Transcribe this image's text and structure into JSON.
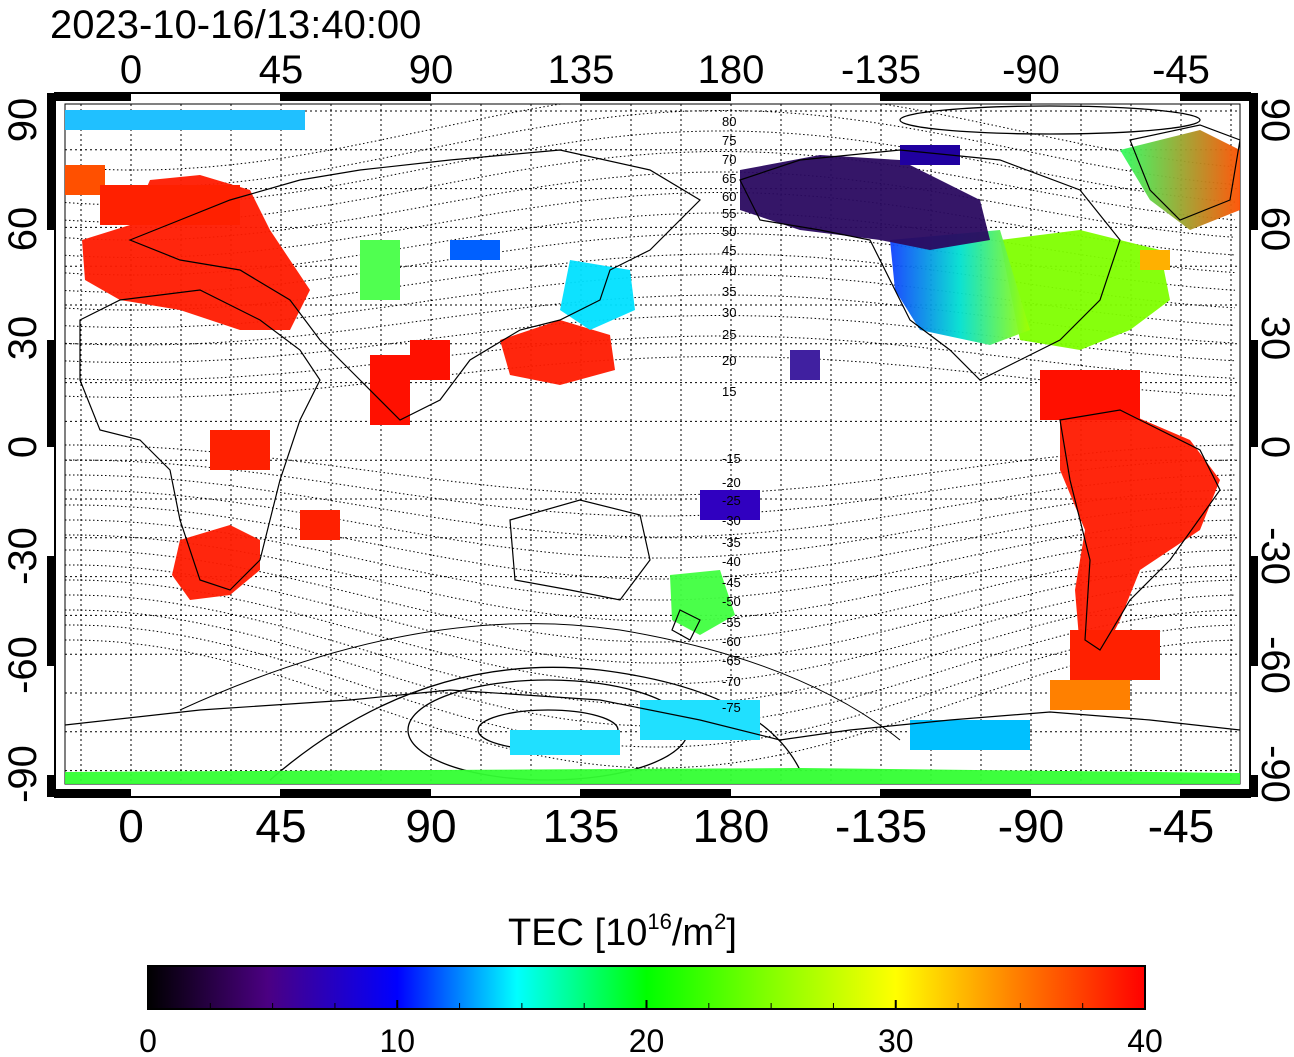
{
  "title": "2023-10-16/13:40:00",
  "colorbar": {
    "label_main": "TEC  [10",
    "label_exp": "16",
    "label_mid": "/m",
    "label_exp2": "2",
    "label_end": "]",
    "ticks": [
      "0",
      "10",
      "20",
      "30",
      "40"
    ],
    "range": [
      0,
      40
    ],
    "colors": [
      "#000000",
      "#4b0082",
      "#0000ff",
      "#00ffff",
      "#00ff00",
      "#ffff00",
      "#ff8000",
      "#ff0000"
    ]
  },
  "map": {
    "lon_ticks": [
      "0",
      "45",
      "90",
      "135",
      "180",
      "-135",
      "-90",
      "-45"
    ],
    "lat_ticks": [
      "90",
      "60",
      "30",
      "0",
      "-30",
      "-60",
      "-90"
    ],
    "right_lat_ticks": [
      "90",
      "60",
      "30",
      "0",
      "-30",
      "-60",
      "-90"
    ],
    "contour_labels": [
      "80",
      "75",
      "70",
      "65",
      "60",
      "55",
      "50",
      "45",
      "40",
      "35",
      "30",
      "25",
      "20",
      "15",
      "-15",
      "-20",
      "-25",
      "-30",
      "-35",
      "-40",
      "-45",
      "-50",
      "-55",
      "-60",
      "-65",
      "-70",
      "-75"
    ],
    "regions": [
      {
        "name": "europe",
        "color": "#ff1a00"
      },
      {
        "name": "africa-south",
        "color": "#ff1a00"
      },
      {
        "name": "south-america",
        "color": "#ff1a00"
      },
      {
        "name": "north-america-east",
        "color": "#7fff00"
      },
      {
        "name": "north-america-west",
        "color": "#2060ff"
      },
      {
        "name": "alaska",
        "color": "#2a0a60"
      },
      {
        "name": "east-asia",
        "color": "#ff1a00"
      },
      {
        "name": "japan",
        "color": "#00e0ff"
      },
      {
        "name": "australia",
        "color": "#40ff40"
      },
      {
        "name": "antarctica",
        "color": "#33ff33"
      },
      {
        "name": "greenland",
        "color": "#ff5000"
      }
    ]
  }
}
